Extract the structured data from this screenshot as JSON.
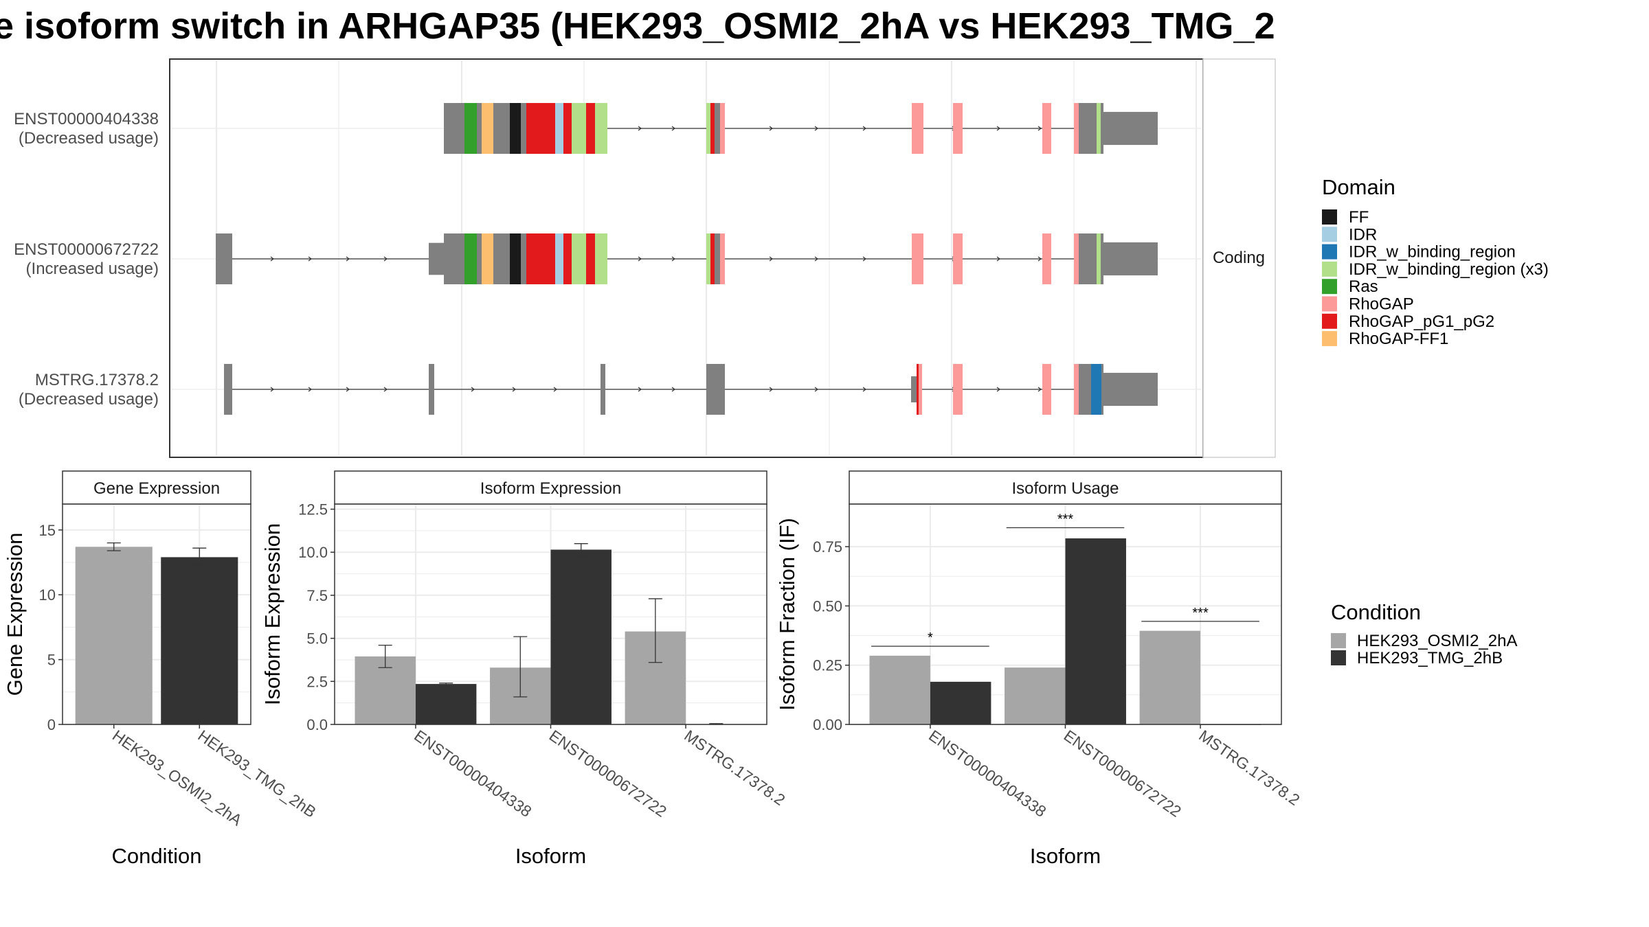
{
  "title": "e isoform switch in ARHGAP35 (HEK293_OSMI2_2hA vs HEK293_TMG_2",
  "colors": {
    "cond_a": "#a6a6a6",
    "cond_b": "#333333",
    "exon": "#808080",
    "panel_border": "#333333",
    "strip_fill": "#ffffff",
    "grid_major": "#ebebeb"
  },
  "chart_data": [
    {
      "id": "isoform-structure",
      "type": "diagram",
      "strip_label": "Coding",
      "transcripts": [
        {
          "id": "ENST00000404338",
          "label_line1": "ENST00000404338",
          "label_line2": "(Decreased usage)"
        },
        {
          "id": "ENST00000672722",
          "label_line1": "ENST00000672722",
          "label_line2": "(Increased usage)"
        },
        {
          "id": "MSTRG.17378.2",
          "label_line1": "MSTRG.17378.2",
          "label_line2": "(Decreased usage)"
        }
      ],
      "legend": {
        "title": "Domain",
        "entries": [
          {
            "name": "FF",
            "color": "#1a1a1a"
          },
          {
            "name": "IDR",
            "color": "#a6cee3"
          },
          {
            "name": "IDR_w_binding_region",
            "color": "#1f78b4"
          },
          {
            "name": "IDR_w_binding_region (x3)",
            "color": "#b2df8a"
          },
          {
            "name": "Ras",
            "color": "#33a02c"
          },
          {
            "name": "RhoGAP",
            "color": "#fb9a99"
          },
          {
            "name": "RhoGAP_pG1_pG2",
            "color": "#e31a1c"
          },
          {
            "name": "RhoGAP-FF1",
            "color": "#fdbf6f"
          }
        ]
      }
    },
    {
      "id": "gene-expression",
      "type": "bar",
      "strip_label": "Gene Expression",
      "xlabel": "Condition",
      "ylabel": "Gene Expression",
      "ylim": [
        0,
        17
      ],
      "yticks": [
        0,
        5,
        10,
        15
      ],
      "categories": [
        "HEK293_OSMI2_2hA",
        "HEK293_TMG_2hB"
      ],
      "bars": [
        {
          "category": "HEK293_OSMI2_2hA",
          "value": 13.7,
          "err_low": 13.4,
          "err_high": 14.0,
          "series": 0
        },
        {
          "category": "HEK293_TMG_2hB",
          "value": 12.9,
          "err_low": 12.3,
          "err_high": 13.6,
          "series": 1
        }
      ]
    },
    {
      "id": "isoform-expression",
      "type": "bar",
      "strip_label": "Isoform Expression",
      "xlabel": "Isoform",
      "ylabel": "Isoform Expression",
      "ylim": [
        0,
        12.8
      ],
      "yticks": [
        0.0,
        2.5,
        5.0,
        7.5,
        10.0,
        12.5
      ],
      "ytick_labels": [
        "0.0",
        "2.5",
        "5.0",
        "7.5",
        "10.0",
        "12.5"
      ],
      "categories": [
        "ENST00000404338",
        "ENST00000672722",
        "MSTRG.17378.2"
      ],
      "series": [
        {
          "name": "HEK293_OSMI2_2hA",
          "values": [
            3.95,
            3.3,
            5.4
          ],
          "err_low": [
            3.3,
            1.6,
            3.6
          ],
          "err_high": [
            4.6,
            5.1,
            7.3
          ]
        },
        {
          "name": "HEK293_TMG_2hB",
          "values": [
            2.35,
            10.15,
            0.02
          ],
          "err_low": [
            2.3,
            9.8,
            0.0
          ],
          "err_high": [
            2.4,
            10.5,
            0.05
          ]
        }
      ]
    },
    {
      "id": "isoform-usage",
      "type": "bar",
      "strip_label": "Isoform Usage",
      "xlabel": "Isoform",
      "ylabel": "Isoform Fraction (IF)",
      "ylim": [
        0,
        0.93
      ],
      "yticks": [
        0.0,
        0.25,
        0.5,
        0.75
      ],
      "ytick_labels": [
        "0.00",
        "0.25",
        "0.50",
        "0.75"
      ],
      "categories": [
        "ENST00000404338",
        "ENST00000672722",
        "MSTRG.17378.2"
      ],
      "series": [
        {
          "name": "HEK293_OSMI2_2hA",
          "values": [
            0.29,
            0.24,
            0.395
          ]
        },
        {
          "name": "HEK293_TMG_2hB",
          "values": [
            0.18,
            0.785,
            0.0
          ]
        }
      ],
      "significance": [
        {
          "category_index": 0,
          "label": "*",
          "y": 0.33
        },
        {
          "category_index": 1,
          "label": "***",
          "y": 0.83
        },
        {
          "category_index": 2,
          "label": "***",
          "y": 0.435
        }
      ]
    }
  ],
  "condition_legend": {
    "title": "Condition",
    "entries": [
      "HEK293_OSMI2_2hA",
      "HEK293_TMG_2hB"
    ]
  }
}
